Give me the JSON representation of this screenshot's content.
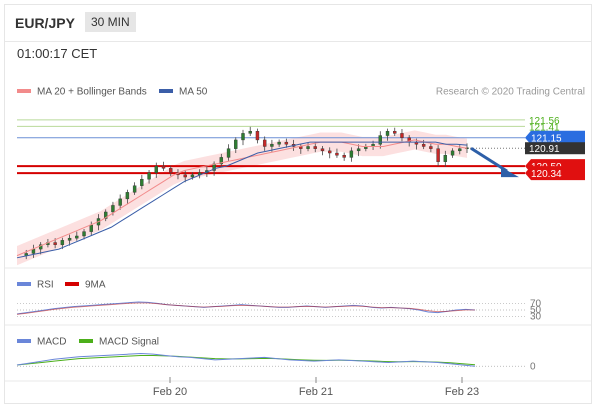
{
  "header": {
    "pair": "EUR/JPY",
    "timeframe": "30 MIN"
  },
  "timestamp": "01:00:17 CET",
  "legend": {
    "bollinger": "MA 20 + Bollinger Bands",
    "ma50": "MA 50",
    "credit": "Research © 2020 Trading Central",
    "rsi": "RSI",
    "rsi_ma": "9MA",
    "macd": "MACD",
    "macd_signal": "MACD Signal"
  },
  "colors": {
    "up": "#2e7d32",
    "down": "#c62828",
    "ma20": "#f28b8b",
    "band": "#fbd3d3",
    "ma50": "#3b5ea8",
    "resistance": "#b9d99a",
    "pivot": "#6b8fd6",
    "support": "#d40000",
    "rsi": "#6a86d9",
    "macd_signal": "#4caf1a"
  },
  "chart_data": [
    {
      "type": "candlestick",
      "x_ticks": [
        "Feb 20",
        "Feb 21",
        "Feb 23"
      ],
      "levels": [
        {
          "value": 121.56,
          "label": "121.56",
          "kind": "resistance"
        },
        {
          "value": 121.41,
          "label": "121.41",
          "kind": "resistance"
        },
        {
          "value": 121.15,
          "label": "121.15",
          "kind": "pivot"
        },
        {
          "value": 120.91,
          "label": "120.91",
          "kind": "last"
        },
        {
          "value": 120.5,
          "label": "120.50",
          "kind": "support"
        },
        {
          "value": 120.34,
          "label": "120.34",
          "kind": "support"
        }
      ],
      "ylim": [
        118.35,
        121.9
      ],
      "close_path": [
        118.45,
        118.5,
        118.6,
        118.7,
        118.75,
        118.7,
        118.8,
        118.85,
        118.9,
        119.0,
        119.15,
        119.3,
        119.45,
        119.6,
        119.75,
        119.9,
        120.05,
        120.2,
        120.35,
        120.5,
        120.45,
        120.35,
        120.3,
        120.25,
        120.3,
        120.35,
        120.4,
        120.55,
        120.7,
        120.9,
        121.1,
        121.25,
        121.3,
        121.1,
        120.95,
        121.0,
        121.05,
        121.0,
        120.95,
        120.9,
        120.95,
        120.9,
        120.85,
        120.8,
        120.75,
        120.7,
        120.85,
        120.9,
        120.95,
        121.0,
        121.2,
        121.3,
        121.25,
        121.15,
        121.05,
        121.0,
        120.95,
        120.9,
        120.6,
        120.75,
        120.85,
        120.9,
        120.92
      ],
      "projection": {
        "from": 120.91,
        "to": 120.34
      },
      "ma20": [
        118.45,
        118.55,
        118.65,
        118.75,
        118.85,
        118.95,
        119.05,
        119.15,
        119.25,
        119.4,
        119.55,
        119.7,
        119.85,
        120.0,
        120.15,
        120.3,
        120.4,
        120.45,
        120.5,
        120.55,
        120.6,
        120.65,
        120.7,
        120.75,
        120.8,
        120.85,
        120.9,
        120.95,
        121.0,
        121.05,
        121.05,
        121.05,
        121.0,
        120.95,
        120.95,
        120.95,
        121.0,
        121.05,
        121.1,
        121.05,
        121.0,
        121.0,
        120.95,
        120.91
      ],
      "ma50": [
        118.4,
        118.45,
        118.5,
        118.55,
        118.6,
        118.7,
        118.8,
        118.9,
        119.0,
        119.1,
        119.25,
        119.4,
        119.55,
        119.7,
        119.85,
        120.0,
        120.15,
        120.25,
        120.35,
        120.45,
        120.5,
        120.6,
        120.7,
        120.8,
        120.85,
        120.9,
        120.95,
        121.0,
        121.05,
        121.05,
        121.05,
        121.05,
        121.05,
        121.05,
        121.05,
        121.05,
        121.05,
        121.05,
        121.05,
        121.05,
        121.05,
        121.0,
        121.0,
        120.98
      ]
    },
    {
      "type": "line",
      "name": "RSI",
      "tick_labels": [
        "70",
        "50",
        "30"
      ],
      "ylim": [
        20,
        80
      ],
      "rsi": [
        38,
        42,
        46,
        50,
        54,
        57,
        60,
        62,
        64,
        66,
        68,
        70,
        72,
        74,
        73,
        70,
        66,
        64,
        62,
        60,
        58,
        60,
        62,
        64,
        66,
        64,
        62,
        60,
        58,
        58,
        60,
        62,
        60,
        58,
        60,
        62,
        64,
        62,
        58,
        56,
        58,
        56,
        54,
        50,
        44,
        42,
        46,
        50,
        52,
        50
      ],
      "rsi_ma": [
        37,
        40,
        44,
        48,
        52,
        55,
        58,
        60,
        62,
        64,
        66,
        68,
        70,
        71,
        71,
        69,
        66,
        64,
        62,
        60,
        59,
        60,
        61,
        63,
        64,
        63,
        62,
        60,
        59,
        59,
        60,
        61,
        60,
        59,
        60,
        61,
        62,
        61,
        59,
        57,
        57,
        56,
        55,
        52,
        48,
        45,
        46,
        48,
        50,
        50
      ]
    },
    {
      "type": "line",
      "name": "MACD",
      "tick_labels": [
        "0"
      ],
      "ylim": [
        -1,
        1.2
      ],
      "macd": [
        0.1,
        0.25,
        0.4,
        0.55,
        0.65,
        0.75,
        0.8,
        0.85,
        0.9,
        0.95,
        1.0,
        0.95,
        0.85,
        0.75,
        0.7,
        0.6,
        0.5,
        0.55,
        0.6,
        0.65,
        0.7,
        0.6,
        0.5,
        0.45,
        0.4,
        0.45,
        0.5,
        0.45,
        0.4,
        0.35,
        0.3,
        0.35,
        0.4,
        0.35,
        0.3,
        0.2,
        0.1,
        0.0
      ],
      "macd_signal": [
        0.1,
        0.2,
        0.3,
        0.4,
        0.5,
        0.6,
        0.65,
        0.7,
        0.75,
        0.8,
        0.85,
        0.85,
        0.82,
        0.78,
        0.72,
        0.66,
        0.6,
        0.58,
        0.58,
        0.6,
        0.62,
        0.6,
        0.55,
        0.5,
        0.47,
        0.46,
        0.47,
        0.46,
        0.43,
        0.4,
        0.37,
        0.36,
        0.37,
        0.36,
        0.33,
        0.28,
        0.2,
        0.12
      ]
    }
  ]
}
